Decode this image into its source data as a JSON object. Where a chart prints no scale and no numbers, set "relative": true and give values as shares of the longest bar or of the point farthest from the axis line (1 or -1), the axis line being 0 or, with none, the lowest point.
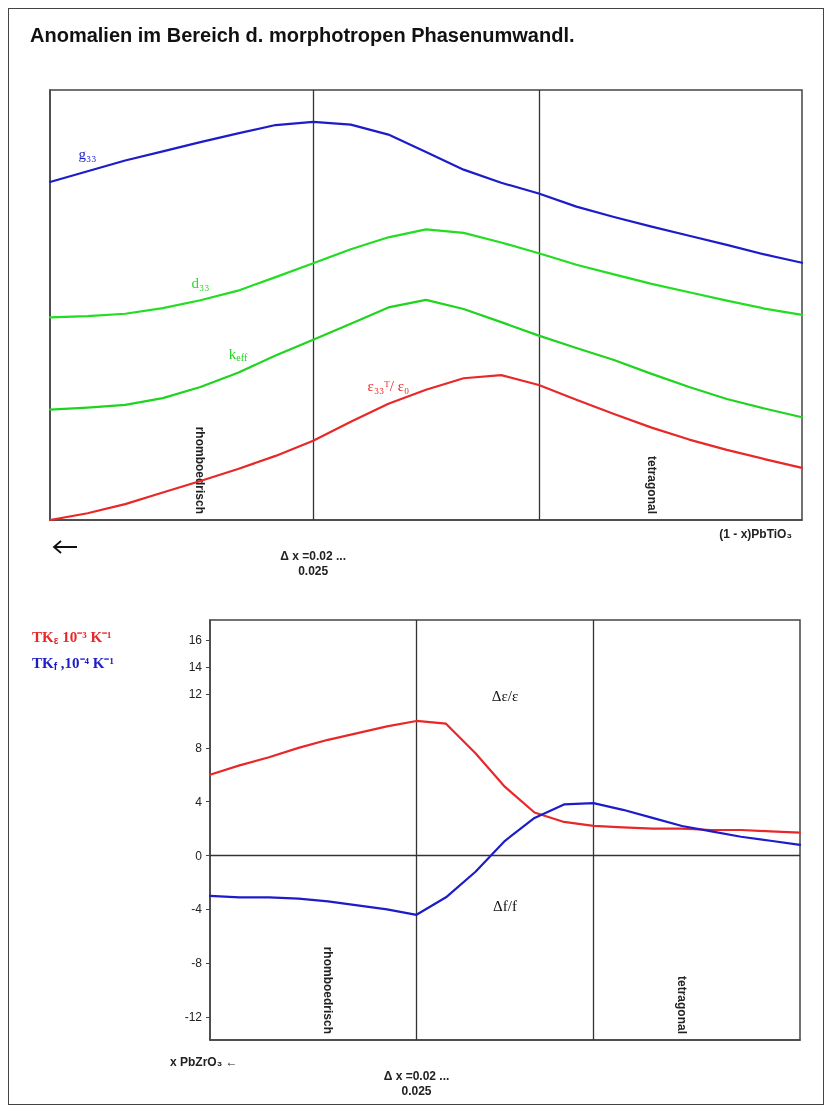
{
  "chart_data": [
    {
      "type": "line",
      "title": "Anomalien im Bereich d. morphotropen Phasenumwandl.",
      "relative": true,
      "tick_labels": false,
      "grid": false,
      "legend": false,
      "marker": "none",
      "xlabel": "(1 - x)PbTiO₃",
      "categories": [
        null,
        null,
        null,
        null,
        null,
        null,
        null,
        null,
        null,
        null,
        null,
        null,
        null,
        null,
        null,
        null,
        null,
        null,
        null,
        null,
        null
      ],
      "annotations": [
        "rhomboedrisch",
        "tetragonal",
        "Δ x =0.02 ...\n0.025"
      ],
      "series": [
        {
          "name": "g₃₃",
          "color": "#1c1cc8",
          "values": [
            0.849,
            0.876,
            0.903,
            0.926,
            0.949,
            0.971,
            0.992,
            1,
            0.993,
            0.968,
            0.924,
            0.88,
            0.847,
            0.82,
            0.787,
            0.761,
            0.737,
            0.714,
            0.691,
            0.667,
            0.646
          ]
        },
        {
          "name": "d₃₃",
          "color": "#22dd22",
          "values": [
            0.509,
            0.512,
            0.518,
            0.532,
            0.552,
            0.576,
            0.61,
            0.645,
            0.68,
            0.71,
            0.73,
            0.721,
            0.697,
            0.67,
            0.641,
            0.617,
            0.593,
            0.572,
            0.551,
            0.531,
            0.515
          ]
        },
        {
          "name": "k$_{eff}$",
          "color": "#1fd41f",
          "values": [
            0.277,
            0.282,
            0.289,
            0.306,
            0.334,
            0.37,
            0.413,
            0.453,
            0.493,
            0.534,
            0.553,
            0.53,
            0.497,
            0.463,
            0.432,
            0.402,
            0.367,
            0.334,
            0.304,
            0.28,
            0.258
          ]
        },
        {
          "name": "ε₃₃ᵀ/ ε₀",
          "color": "#e82828",
          "values": [
            0,
            0.017,
            0.04,
            0.069,
            0.098,
            0.128,
            0.161,
            0.199,
            0.247,
            0.292,
            0.327,
            0.356,
            0.364,
            0.339,
            0.302,
            0.266,
            0.232,
            0.202,
            0.176,
            0.153,
            0.131
          ]
        }
      ]
    },
    {
      "type": "line",
      "ylim": [
        -13.7,
        17.5
      ],
      "yticks": [
        16,
        14,
        12,
        8,
        4,
        0,
        -4,
        -8,
        -12
      ],
      "tick_labels": "y",
      "grid": false,
      "legend": false,
      "marker": "none",
      "xlabel": "x PbZrO₃ ←",
      "categories": [
        null,
        null,
        null,
        null,
        null,
        null,
        null,
        null,
        null,
        null,
        null,
        null,
        null,
        null,
        null,
        null,
        null,
        null,
        null,
        null,
        null
      ],
      "ref_lines": [
        {
          "axis": "y",
          "value": 0
        }
      ],
      "annotations": [
        "rhomboedrisch",
        "tetragonal",
        "Δ x =0.02 ...\n0.025",
        "Δε/ε",
        "Δf/f"
      ],
      "series": [
        {
          "name": "TK$_{ε}$ 10⁻³ K⁻¹",
          "color": "#e82828",
          "values": [
            6.0,
            6.7,
            7.3,
            8.0,
            8.6,
            9.1,
            9.6,
            10.0,
            9.8,
            7.6,
            5.1,
            3.2,
            2.5,
            2.2,
            2.1,
            2.0,
            2.0,
            1.9,
            1.9,
            1.8,
            1.7
          ]
        },
        {
          "name": "TK$_{f}$ ,10⁻⁴ K⁻¹",
          "color": "#1c1cc8",
          "values": [
            -3.0,
            -3.1,
            -3.1,
            -3.2,
            -3.4,
            -3.7,
            -4.0,
            -4.4,
            -3.1,
            -1.2,
            1.1,
            2.8,
            3.8,
            3.9,
            3.4,
            2.8,
            2.2,
            1.8,
            1.4,
            1.1,
            0.8
          ]
        }
      ]
    }
  ]
}
